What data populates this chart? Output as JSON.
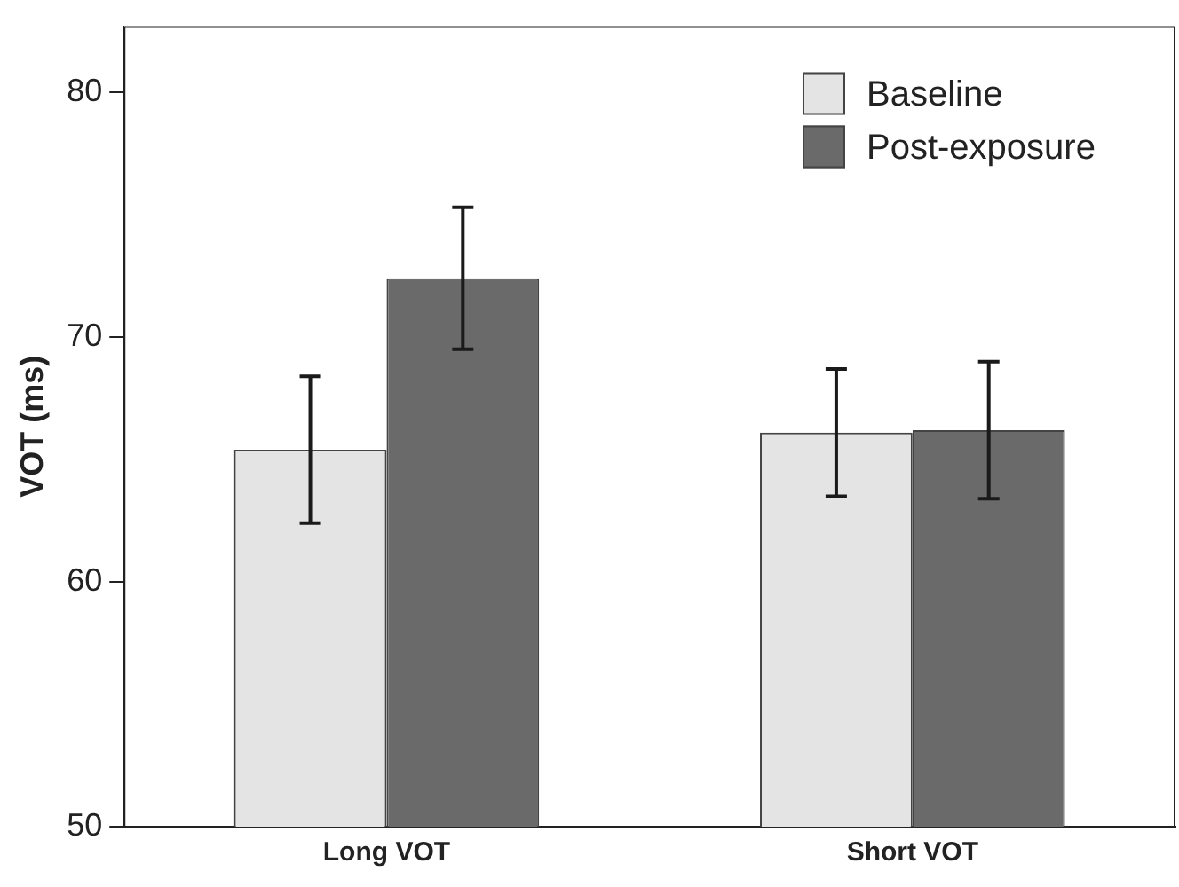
{
  "chart_data": {
    "type": "bar",
    "ylabel": "VOT (ms)",
    "categories": [
      "Long VOT",
      "Short VOT"
    ],
    "series": [
      {
        "name": "Baseline",
        "color": "#e4e4e4",
        "values": [
          65.4,
          66.1
        ],
        "errors": [
          3.0,
          2.6
        ]
      },
      {
        "name": "Post-exposure",
        "color": "#6a6a6b",
        "values": [
          72.4,
          66.2
        ],
        "errors": [
          2.9,
          2.8
        ]
      }
    ],
    "ylim": [
      50,
      82.7
    ],
    "yticks": [
      50,
      60,
      70,
      80
    ],
    "grid": false,
    "legend": "top right"
  }
}
